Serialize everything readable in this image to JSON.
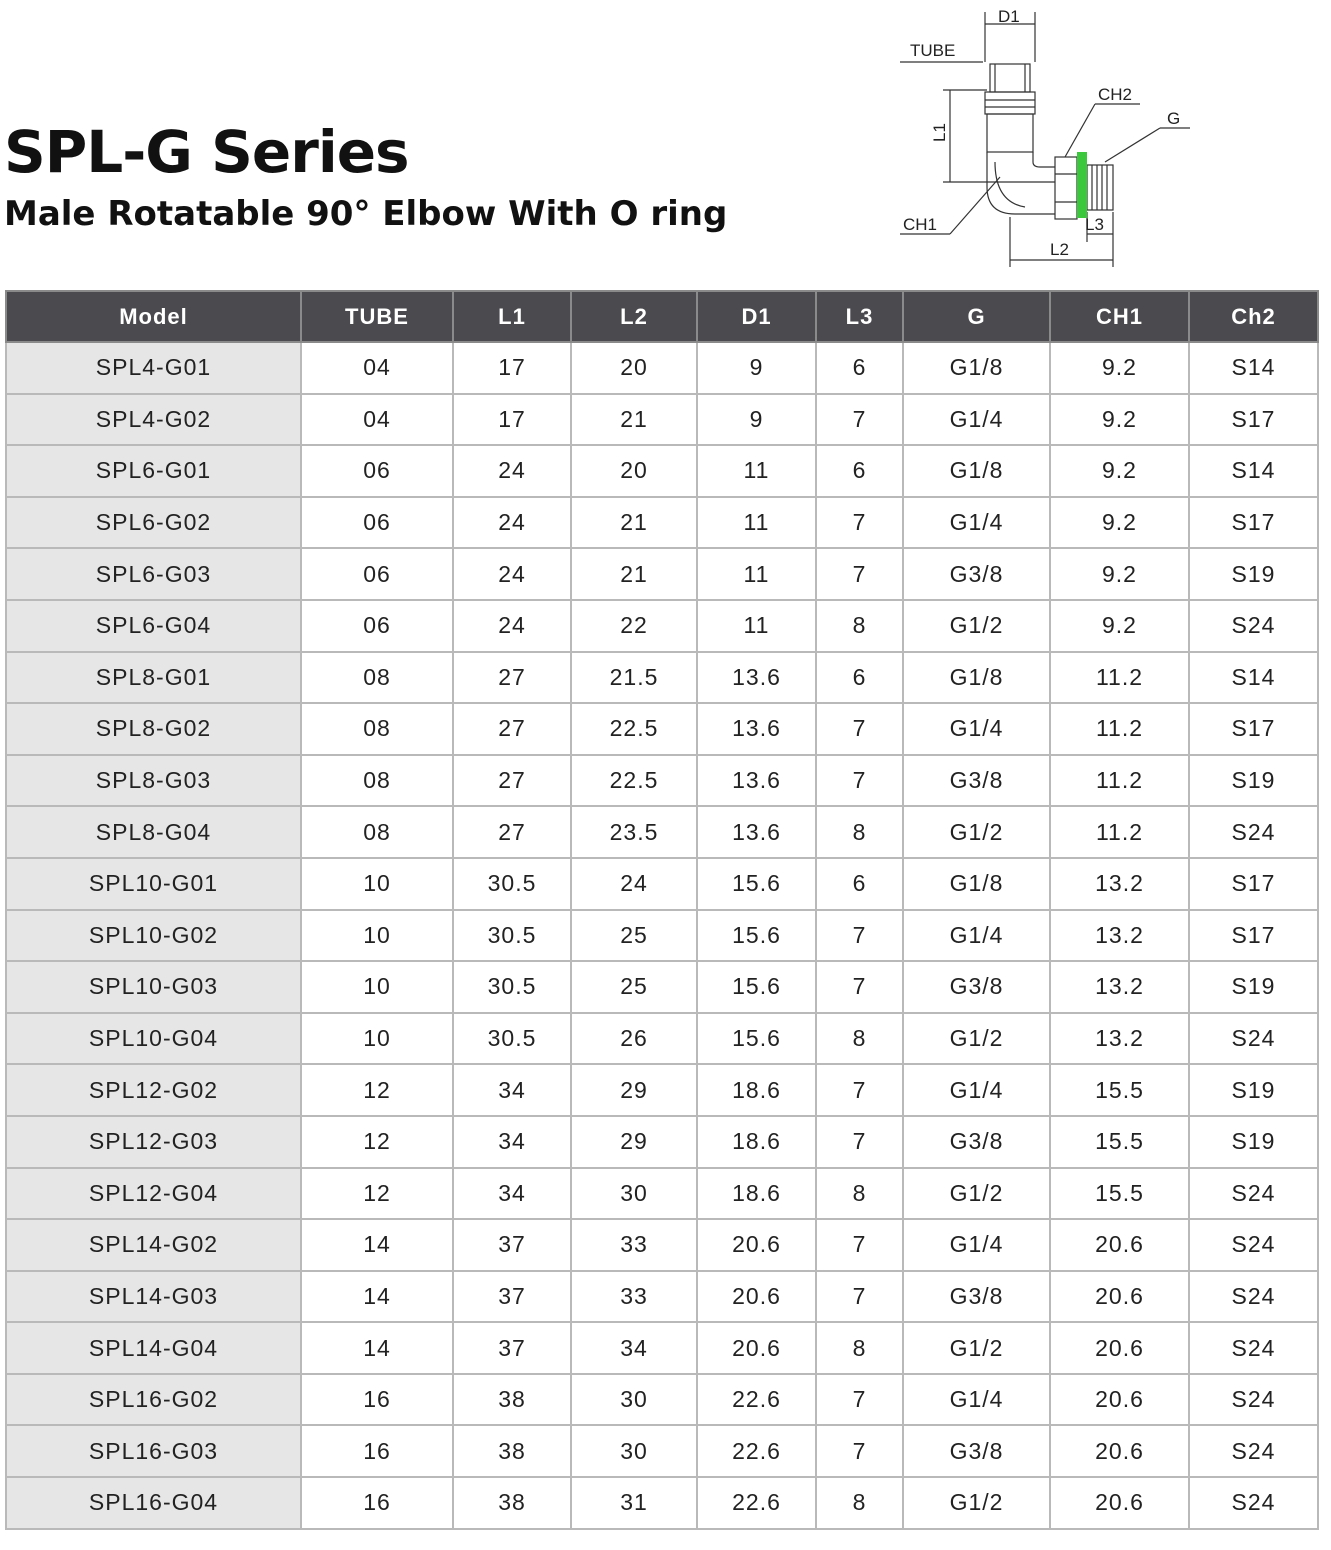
{
  "header": {
    "title": "SPL-G Series",
    "subtitle": "Male Rotatable 90° Elbow With O ring"
  },
  "diagram": {
    "labels": {
      "d1": "D1",
      "tube": "TUBE",
      "ch2": "CH2",
      "g": "G",
      "l1": "L1",
      "ch1": "CH1",
      "l3": "L3",
      "l2": "L2"
    },
    "oring_color": "#3cc83c"
  },
  "table": {
    "columns": [
      "Model",
      "TUBE",
      "L1",
      "L2",
      "D1",
      "L3",
      "G",
      "CH1",
      "Ch2"
    ],
    "rows": [
      [
        "SPL4-G01",
        "04",
        "17",
        "20",
        "9",
        "6",
        "G1/8",
        "9.2",
        "S14"
      ],
      [
        "SPL4-G02",
        "04",
        "17",
        "21",
        "9",
        "7",
        "G1/4",
        "9.2",
        "S17"
      ],
      [
        "SPL6-G01",
        "06",
        "24",
        "20",
        "11",
        "6",
        "G1/8",
        "9.2",
        "S14"
      ],
      [
        "SPL6-G02",
        "06",
        "24",
        "21",
        "11",
        "7",
        "G1/4",
        "9.2",
        "S17"
      ],
      [
        "SPL6-G03",
        "06",
        "24",
        "21",
        "11",
        "7",
        "G3/8",
        "9.2",
        "S19"
      ],
      [
        "SPL6-G04",
        "06",
        "24",
        "22",
        "11",
        "8",
        "G1/2",
        "9.2",
        "S24"
      ],
      [
        "SPL8-G01",
        "08",
        "27",
        "21.5",
        "13.6",
        "6",
        "G1/8",
        "11.2",
        "S14"
      ],
      [
        "SPL8-G02",
        "08",
        "27",
        "22.5",
        "13.6",
        "7",
        "G1/4",
        "11.2",
        "S17"
      ],
      [
        "SPL8-G03",
        "08",
        "27",
        "22.5",
        "13.6",
        "7",
        "G3/8",
        "11.2",
        "S19"
      ],
      [
        "SPL8-G04",
        "08",
        "27",
        "23.5",
        "13.6",
        "8",
        "G1/2",
        "11.2",
        "S24"
      ],
      [
        "SPL10-G01",
        "10",
        "30.5",
        "24",
        "15.6",
        "6",
        "G1/8",
        "13.2",
        "S17"
      ],
      [
        "SPL10-G02",
        "10",
        "30.5",
        "25",
        "15.6",
        "7",
        "G1/4",
        "13.2",
        "S17"
      ],
      [
        "SPL10-G03",
        "10",
        "30.5",
        "25",
        "15.6",
        "7",
        "G3/8",
        "13.2",
        "S19"
      ],
      [
        "SPL10-G04",
        "10",
        "30.5",
        "26",
        "15.6",
        "8",
        "G1/2",
        "13.2",
        "S24"
      ],
      [
        "SPL12-G02",
        "12",
        "34",
        "29",
        "18.6",
        "7",
        "G1/4",
        "15.5",
        "S19"
      ],
      [
        "SPL12-G03",
        "12",
        "34",
        "29",
        "18.6",
        "7",
        "G3/8",
        "15.5",
        "S19"
      ],
      [
        "SPL12-G04",
        "12",
        "34",
        "30",
        "18.6",
        "8",
        "G1/2",
        "15.5",
        "S24"
      ],
      [
        "SPL14-G02",
        "14",
        "37",
        "33",
        "20.6",
        "7",
        "G1/4",
        "20.6",
        "S24"
      ],
      [
        "SPL14-G03",
        "14",
        "37",
        "33",
        "20.6",
        "7",
        "G3/8",
        "20.6",
        "S24"
      ],
      [
        "SPL14-G04",
        "14",
        "37",
        "34",
        "20.6",
        "8",
        "G1/2",
        "20.6",
        "S24"
      ],
      [
        "SPL16-G02",
        "16",
        "38",
        "30",
        "22.6",
        "7",
        "G1/4",
        "20.6",
        "S24"
      ],
      [
        "SPL16-G03",
        "16",
        "38",
        "30",
        "22.6",
        "7",
        "G3/8",
        "20.6",
        "S24"
      ],
      [
        "SPL16-G04",
        "16",
        "38",
        "31",
        "22.6",
        "8",
        "G1/2",
        "20.6",
        "S24"
      ]
    ]
  }
}
